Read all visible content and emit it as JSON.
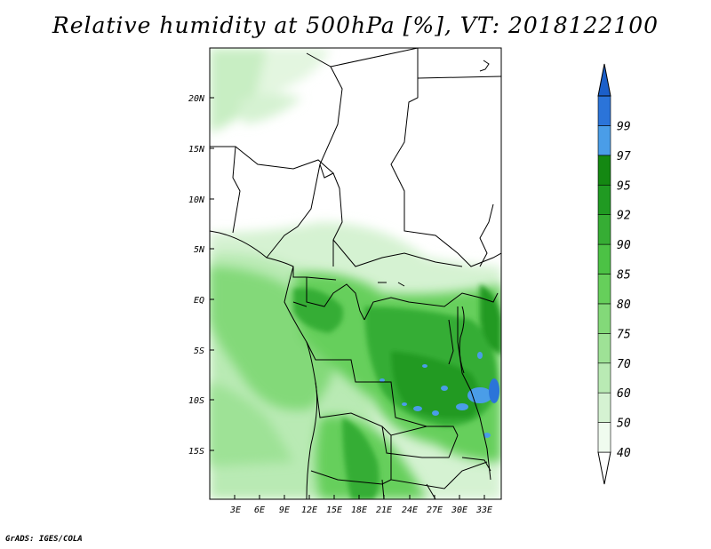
{
  "title": "Relative humidity at 500hPa [%], VT: 2018122100",
  "credit": "GrADS: IGES/COLA",
  "map": {
    "lat_labels": [
      "20N",
      "15N",
      "10N",
      "5N",
      "EQ",
      "5S",
      "10S",
      "15S"
    ],
    "lon_labels": [
      "3E",
      "6E",
      "9E",
      "12E",
      "15E",
      "18E",
      "21E",
      "24E",
      "27E",
      "30E",
      "33E"
    ]
  },
  "colorbar": {
    "levels": [
      "40",
      "50",
      "60",
      "70",
      "75",
      "80",
      "85",
      "90",
      "92",
      "95",
      "97",
      "99"
    ],
    "colors": [
      "#f0fbef",
      "#d5f2d2",
      "#b9eab4",
      "#9ee296",
      "#83d979",
      "#66cf5b",
      "#4cc245",
      "#36ad34",
      "#209a22",
      "#148812",
      "#4a9de8",
      "#2b74d9",
      "#1b5fc9"
    ]
  }
}
